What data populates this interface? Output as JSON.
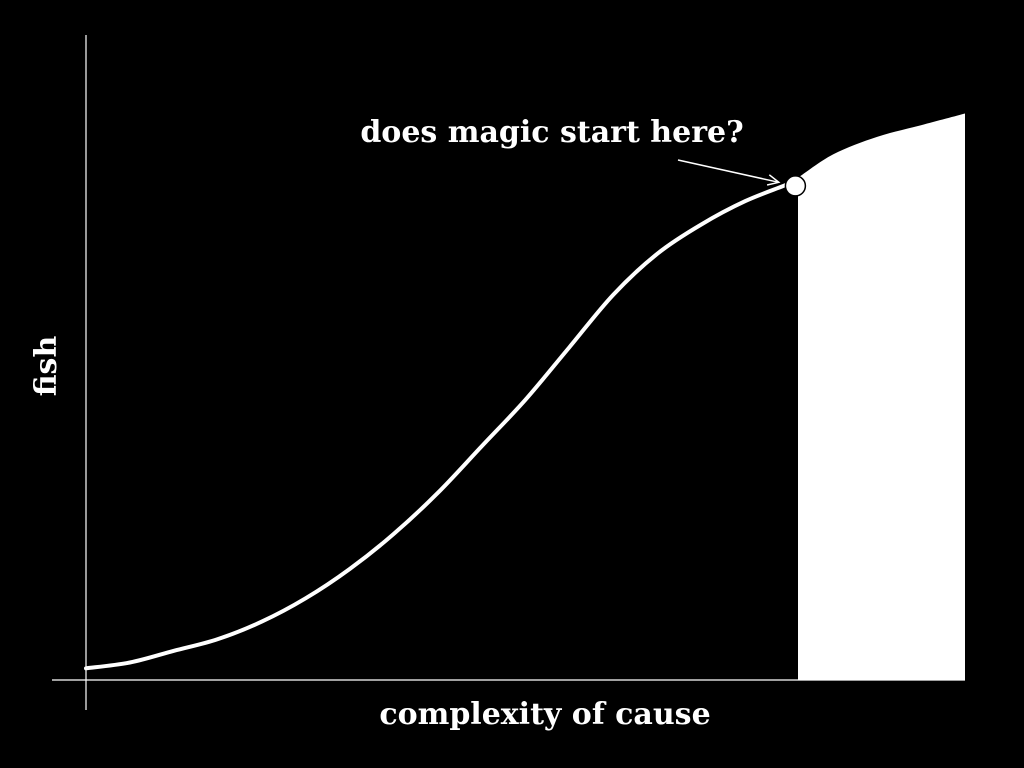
{
  "chart_data": {
    "type": "area",
    "title": "",
    "xlabel": "complexity of cause",
    "ylabel": "fish",
    "xlim": [
      0,
      100
    ],
    "ylim": [
      0,
      100
    ],
    "grid": false,
    "legend": "none",
    "series": [
      {
        "x": [
          0,
          5,
          10,
          15,
          20,
          25,
          30,
          35,
          40,
          45,
          50,
          55,
          60,
          65,
          70,
          75,
          80,
          81,
          85,
          90,
          95,
          100
        ],
        "y": [
          2,
          3,
          5,
          7,
          10,
          14,
          19,
          25,
          32,
          40,
          48,
          57,
          66,
          73,
          78,
          82,
          85,
          86,
          90,
          93,
          95,
          97
        ]
      }
    ],
    "highlight": {
      "x_from": 81,
      "x_to": 100
    },
    "annotations": [
      {
        "text": "does magic start here?",
        "x": 80.7,
        "y": 84.6
      }
    ]
  },
  "colors": {
    "background": "#000000",
    "foreground": "#ffffff"
  }
}
